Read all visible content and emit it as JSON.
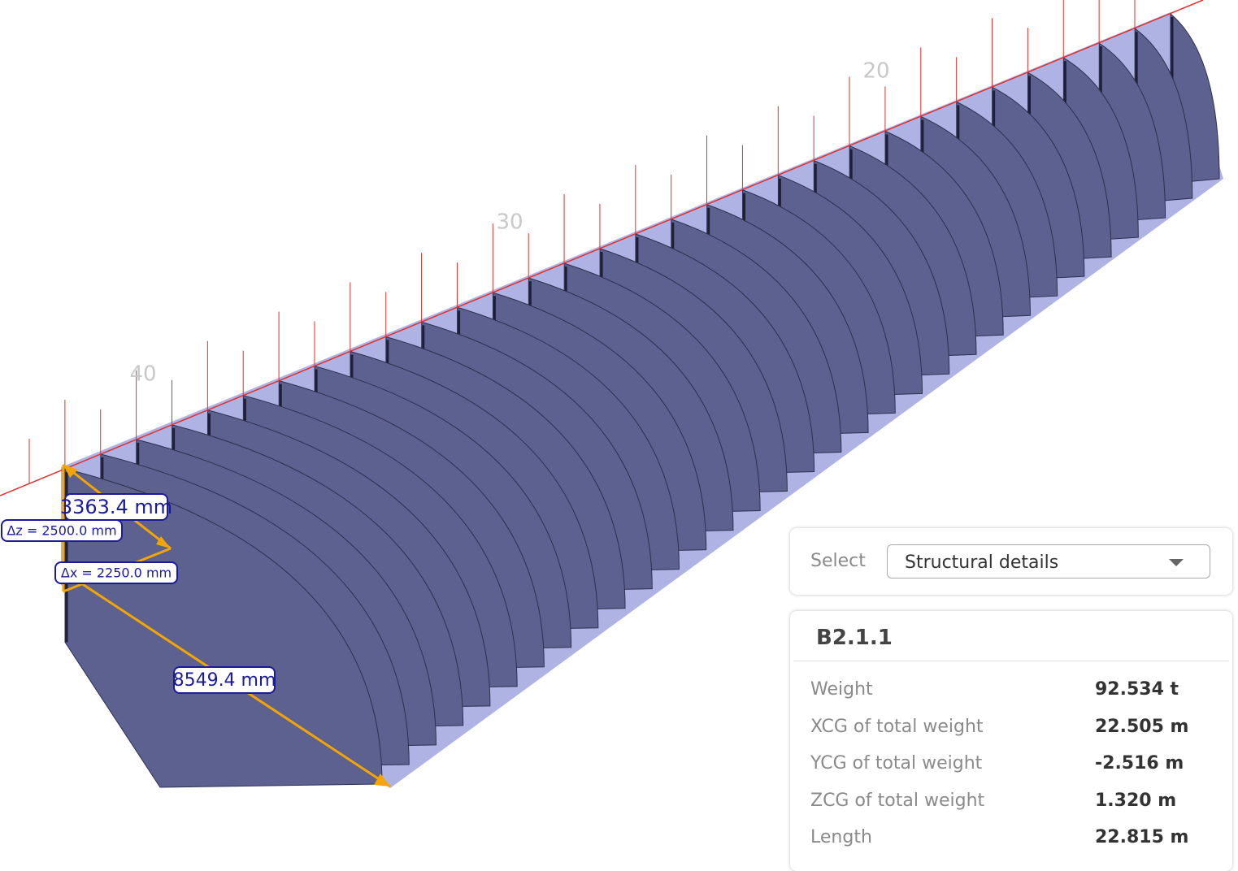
{
  "viewport": {
    "frame_labels": [
      "20",
      "30",
      "40"
    ],
    "dimensions": [
      "3363.4 mm",
      "Δz = 2500.0 mm",
      "Δx = 2250.0 mm",
      "8549.4 mm"
    ]
  },
  "panel": {
    "select_label": "Select",
    "select_value": "Structural details",
    "title": "B2.1.1",
    "properties": [
      {
        "label": "Weight",
        "value": "92.534 t"
      },
      {
        "label": "XCG of total weight",
        "value": "22.505 m"
      },
      {
        "label": "YCG of total weight",
        "value": "-2.516 m"
      },
      {
        "label": "ZCG of total weight",
        "value": "1.320 m"
      },
      {
        "label": "Length",
        "value": "22.815 m"
      }
    ]
  }
}
